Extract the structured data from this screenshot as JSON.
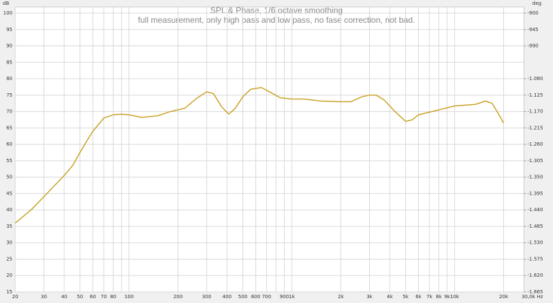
{
  "chart_data": {
    "type": "line",
    "title": "SPL & Phase, 1/6 octave smoothing",
    "subtitle": "full measurement, only high pass and low pass, no fase correction, not bad.",
    "ylabel": "dB",
    "y2label": "deg",
    "xscale": "log",
    "grid": true,
    "x": [
      20,
      25,
      30,
      35,
      40,
      45,
      50,
      55,
      60,
      70,
      80,
      90,
      100,
      120,
      150,
      180,
      220,
      260,
      300,
      330,
      370,
      410,
      450,
      500,
      560,
      650,
      730,
      850,
      1000,
      1200,
      1500,
      2000,
      2300,
      2700,
      3000,
      3300,
      3700,
      4300,
      5000,
      5500,
      6000,
      7000,
      8000,
      10000,
      12000,
      13500,
      15500,
      17000,
      18500,
      20000
    ],
    "series": [
      {
        "name": "SPL",
        "color": "#c9a227",
        "values": [
          36,
          40,
          44,
          47.5,
          50.5,
          53.5,
          57.5,
          61,
          64,
          68,
          69,
          69.2,
          69,
          68.2,
          68.7,
          70,
          71,
          74,
          76,
          75.5,
          71.5,
          69.2,
          71,
          74.5,
          76.8,
          77.3,
          76,
          74.2,
          73.8,
          73.8,
          73.2,
          73,
          73,
          74.5,
          75,
          75,
          73.5,
          70,
          67,
          67.5,
          69,
          69.8,
          70.5,
          71.7,
          72,
          72.2,
          73.2,
          72.5,
          69.5,
          66.5
        ]
      }
    ],
    "xlim": [
      20,
      30000
    ],
    "xticks": [
      20,
      30,
      40,
      50,
      60,
      70,
      80,
      100,
      200,
      300,
      400,
      500,
      600,
      700,
      900,
      {
        "value": 1000,
        "label": "1k"
      },
      {
        "value": 2000,
        "label": "2k"
      },
      {
        "value": 3000,
        "label": "3k"
      },
      {
        "value": 4000,
        "label": "4k"
      },
      {
        "value": 5000,
        "label": "5k"
      },
      {
        "value": 6000,
        "label": "6k"
      },
      {
        "value": 7000,
        "label": "7k"
      },
      {
        "value": 8000,
        "label": "8k"
      },
      {
        "value": 9000,
        "label": "9k"
      },
      {
        "value": 10000,
        "label": "10k"
      },
      {
        "value": 20000,
        "label": "20k"
      },
      {
        "value": 30000,
        "label": "30,0k Hz"
      }
    ],
    "x_minor_ticks": [
      90,
      800
    ],
    "ylim": [
      15,
      100
    ],
    "yticks": [
      15,
      20,
      25,
      30,
      35,
      40,
      45,
      50,
      55,
      60,
      65,
      70,
      75,
      80,
      85,
      90,
      95,
      100
    ],
    "y2lim": [
      -1665,
      -900
    ],
    "y2ticks": [
      -900,
      -945,
      -990,
      {
        "value": -1080,
        "label": "-1.080"
      },
      {
        "value": -1125,
        "label": "-1.125"
      },
      {
        "value": -1170,
        "label": "-1.170"
      },
      {
        "value": -1215,
        "label": "-1.215"
      },
      {
        "value": -1260,
        "label": "-1.260"
      },
      {
        "value": -1305,
        "label": "-1.305"
      },
      {
        "value": -1350,
        "label": "-1.350"
      },
      {
        "value": -1395,
        "label": "-1.395"
      },
      {
        "value": -1440,
        "label": "-1.440"
      },
      {
        "value": -1485,
        "label": "-1.485"
      },
      {
        "value": -1530,
        "label": "-1.530"
      },
      {
        "value": -1575,
        "label": "-1.575"
      },
      {
        "value": -1620,
        "label": "-1.620"
      },
      {
        "value": -1665,
        "label": "-1.665"
      }
    ]
  }
}
